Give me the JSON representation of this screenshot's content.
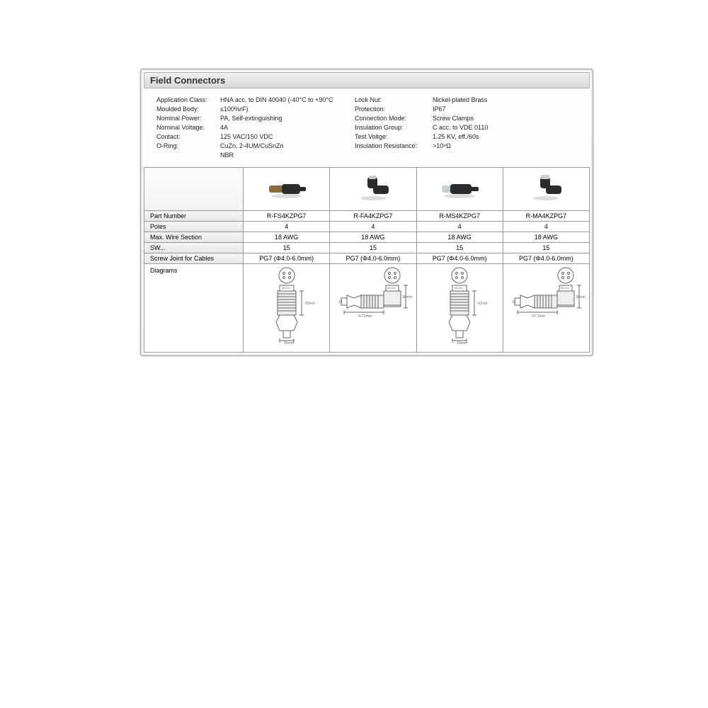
{
  "title": "Field Connectors",
  "colors": {
    "panel_border": "#a0a0a0",
    "table_border": "#999999",
    "label_bg_top": "#f6f6f6",
    "label_bg_bot": "#e6e6e6",
    "title_bg_top": "#f0f0f0",
    "title_bg_bot": "#d8d8d8",
    "text": "#222222",
    "connector_black": "#2b2b2b",
    "connector_brass": "#8a6a3a",
    "connector_silver": "#c8cdd2",
    "diagram_line": "#666666"
  },
  "specs_left": [
    {
      "label": "Application Class:",
      "value": "HNA acc. to DIN 40040 (-40°C to +90°C ≤100%rF)"
    },
    {
      "label": "Moulded Body:",
      "value": "PA, Self-extinguishing"
    },
    {
      "label": "Nominal Power:",
      "value": "4A"
    },
    {
      "label": "Nominal Voltage:",
      "value": "125 VAC/150 VDC"
    },
    {
      "label": "Contact:",
      "value": "CuZn, 2-4UM/CuSnZn"
    },
    {
      "label": "O-Ring:",
      "value": "NBR"
    }
  ],
  "specs_right": [
    {
      "label": "Lock Nut:",
      "value": "Nickel-plated Brass"
    },
    {
      "label": "Protection:",
      "value": "IP67"
    },
    {
      "label": "Connection Mode:",
      "value": "Screw Clamps"
    },
    {
      "label": "Insulation Group:",
      "value": "C acc. to VDE 0110"
    },
    {
      "label": "Test Voltge:",
      "value": "1.25 KV, eff./60s"
    },
    {
      "label": "Insulation Resistance:",
      "value": ">10⁹Ω"
    }
  ],
  "row_labels": {
    "part_number": "Part Number",
    "poles": "Poles",
    "max_wire": "Max. Wire Section",
    "sw": "SW...",
    "screw_joint": "Screw Joint for Cables",
    "diagrams": "Diagrams"
  },
  "products": [
    {
      "part": "R-FS4KZPG7",
      "poles": "4",
      "wire": "18 AWG",
      "sw": "15",
      "screw": "PG7 (Φ4.0-6.0mm)",
      "photo": "straight-black-brass",
      "diagram": "straight"
    },
    {
      "part": "R-FA4KZPG7",
      "poles": "4",
      "wire": "18 AWG",
      "sw": "15",
      "screw": "PG7 (Φ4.0-6.0mm)",
      "photo": "angled-black",
      "diagram": "angled"
    },
    {
      "part": "R-MS4KZPG7",
      "poles": "4",
      "wire": "18 AWG",
      "sw": "15",
      "screw": "PG7 (Φ4.0-6.0mm)",
      "photo": "straight-black-silver",
      "diagram": "straight"
    },
    {
      "part": "R-MA4KZPG7",
      "poles": "4",
      "wire": "18 AWG",
      "sw": "15",
      "screw": "PG7 (Φ4.0-6.0mm)",
      "photo": "angled-black-silver",
      "diagram": "angled"
    }
  ]
}
